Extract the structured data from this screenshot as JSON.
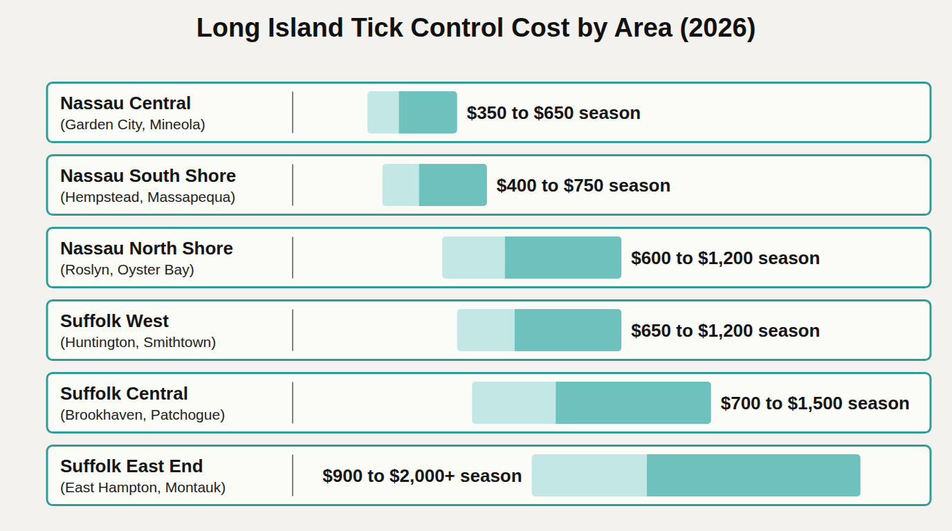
{
  "chart_data": {
    "type": "bar",
    "orientation": "horizontal",
    "title": "Long Island Tick Control Cost by Area (2026)",
    "categories": [
      "Nassau Central",
      "Nassau South Shore",
      "Nassau North Shore",
      "Suffolk West",
      "Suffolk Central",
      "Suffolk East End"
    ],
    "subtitles": [
      "(Garden City, Mineola)",
      "(Hempstead, Massapequa)",
      "(Roslyn, Oyster Bay)",
      "(Huntington, Smithtown)",
      "(Brookhaven, Patchogue)",
      "(East Hampton, Montauk)"
    ],
    "low": [
      350,
      400,
      600,
      650,
      700,
      900
    ],
    "high": [
      650,
      750,
      1200,
      1200,
      1500,
      2000
    ],
    "value_labels": [
      "$350 to $650 season",
      "$400 to $750 season",
      "$600 to $1,200 season",
      "$650 to $1,200 season",
      "$700 to $1,500 season",
      "$900 to $2,000+ season"
    ],
    "color": "#6fc1be",
    "xlim": [
      0,
      2200
    ],
    "tick_labels": false,
    "data_labels": true,
    "grid": false
  }
}
